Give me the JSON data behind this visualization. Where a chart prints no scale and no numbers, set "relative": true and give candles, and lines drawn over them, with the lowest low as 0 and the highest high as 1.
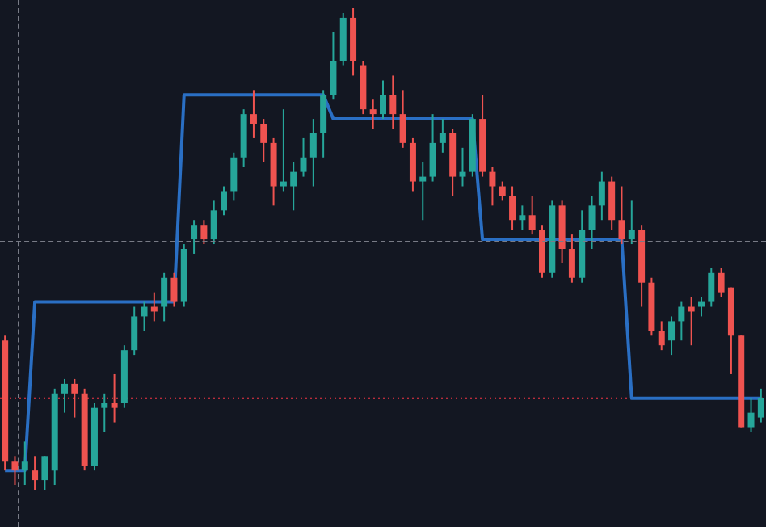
{
  "chart_data": {
    "type": "candlestick",
    "relative": true,
    "categories": [
      null,
      null,
      null,
      null,
      null,
      null,
      null,
      null,
      null,
      null,
      null,
      null,
      null,
      null,
      null,
      null,
      null,
      null,
      null,
      null,
      null,
      null,
      null,
      null,
      null,
      null,
      null,
      null,
      null,
      null,
      null,
      null,
      null,
      null,
      null,
      null,
      null,
      null,
      null,
      null,
      null,
      null,
      null,
      null,
      null,
      null,
      null,
      null,
      null,
      null,
      null,
      null,
      null,
      null,
      null,
      null,
      null,
      null,
      null,
      null,
      null,
      null,
      null,
      null,
      null,
      null,
      null,
      null,
      null,
      null,
      null,
      null,
      null,
      null,
      null,
      null,
      null
    ],
    "ohlc": [
      [
        0.31,
        0.32,
        0.04,
        0.06
      ],
      [
        0.06,
        0.07,
        0.01,
        0.04
      ],
      [
        0.04,
        0.1,
        0.01,
        0.06
      ],
      [
        0.04,
        0.07,
        0,
        0.02
      ],
      [
        0.02,
        0.07,
        0,
        0.07
      ],
      [
        0.04,
        0.21,
        0.01,
        0.2
      ],
      [
        0.2,
        0.23,
        0.16,
        0.22
      ],
      [
        0.22,
        0.23,
        0.15,
        0.2
      ],
      [
        0.2,
        0.21,
        0.04,
        0.05
      ],
      [
        0.05,
        0.18,
        0.04,
        0.17
      ],
      [
        0.17,
        0.2,
        0.12,
        0.18
      ],
      [
        0.18,
        0.24,
        0.14,
        0.17
      ],
      [
        0.18,
        0.3,
        0.17,
        0.29
      ],
      [
        0.29,
        0.38,
        0.28,
        0.36
      ],
      [
        0.36,
        0.39,
        0.33,
        0.38
      ],
      [
        0.38,
        0.41,
        0.35,
        0.37
      ],
      [
        0.38,
        0.45,
        0.35,
        0.44
      ],
      [
        0.44,
        0.45,
        0.38,
        0.39
      ],
      [
        0.39,
        0.51,
        0.38,
        0.5
      ],
      [
        0.52,
        0.56,
        0.49,
        0.55
      ],
      [
        0.55,
        0.56,
        0.51,
        0.52
      ],
      [
        0.52,
        0.6,
        0.51,
        0.58
      ],
      [
        0.58,
        0.63,
        0.57,
        0.62
      ],
      [
        0.62,
        0.7,
        0.6,
        0.69
      ],
      [
        0.69,
        0.79,
        0.67,
        0.78
      ],
      [
        0.78,
        0.83,
        0.73,
        0.76
      ],
      [
        0.76,
        0.77,
        0.68,
        0.72
      ],
      [
        0.72,
        0.73,
        0.59,
        0.63
      ],
      [
        0.63,
        0.79,
        0.62,
        0.64
      ],
      [
        0.63,
        0.68,
        0.58,
        0.66
      ],
      [
        0.66,
        0.73,
        0.65,
        0.69
      ],
      [
        0.69,
        0.77,
        0.63,
        0.74
      ],
      [
        0.74,
        0.83,
        0.69,
        0.82
      ],
      [
        0.82,
        0.95,
        0.81,
        0.89
      ],
      [
        0.89,
        0.99,
        0.88,
        0.98
      ],
      [
        0.98,
        1,
        0.86,
        0.89
      ],
      [
        0.88,
        0.89,
        0.78,
        0.79
      ],
      [
        0.79,
        0.81,
        0.75,
        0.78
      ],
      [
        0.78,
        0.85,
        0.77,
        0.82
      ],
      [
        0.82,
        0.86,
        0.75,
        0.78
      ],
      [
        0.78,
        0.83,
        0.71,
        0.72
      ],
      [
        0.72,
        0.73,
        0.62,
        0.64
      ],
      [
        0.64,
        0.68,
        0.56,
        0.65
      ],
      [
        0.65,
        0.78,
        0.64,
        0.72
      ],
      [
        0.72,
        0.77,
        0.7,
        0.74
      ],
      [
        0.74,
        0.75,
        0.61,
        0.65
      ],
      [
        0.65,
        0.71,
        0.63,
        0.66
      ],
      [
        0.66,
        0.78,
        0.65,
        0.77
      ],
      [
        0.77,
        0.82,
        0.65,
        0.66
      ],
      [
        0.66,
        0.67,
        0.59,
        0.63
      ],
      [
        0.63,
        0.64,
        0.6,
        0.61
      ],
      [
        0.61,
        0.63,
        0.54,
        0.56
      ],
      [
        0.56,
        0.59,
        0.54,
        0.57
      ],
      [
        0.57,
        0.61,
        0.53,
        0.54
      ],
      [
        0.54,
        0.55,
        0.44,
        0.45
      ],
      [
        0.45,
        0.6,
        0.44,
        0.59
      ],
      [
        0.59,
        0.6,
        0.47,
        0.5
      ],
      [
        0.5,
        0.53,
        0.43,
        0.44
      ],
      [
        0.44,
        0.58,
        0.43,
        0.54
      ],
      [
        0.54,
        0.61,
        0.5,
        0.59
      ],
      [
        0.59,
        0.66,
        0.56,
        0.64
      ],
      [
        0.64,
        0.65,
        0.54,
        0.56
      ],
      [
        0.56,
        0.63,
        0.51,
        0.52
      ],
      [
        0.52,
        0.6,
        0.51,
        0.54
      ],
      [
        0.54,
        0.55,
        0.38,
        0.43
      ],
      [
        0.43,
        0.44,
        0.32,
        0.33
      ],
      [
        0.33,
        0.35,
        0.29,
        0.3
      ],
      [
        0.31,
        0.36,
        0.28,
        0.35
      ],
      [
        0.35,
        0.39,
        0.31,
        0.38
      ],
      [
        0.38,
        0.4,
        0.3,
        0.37
      ],
      [
        0.38,
        0.4,
        0.36,
        0.39
      ],
      [
        0.39,
        0.46,
        0.38,
        0.45
      ],
      [
        0.45,
        0.46,
        0.4,
        0.41
      ],
      [
        0.42,
        0.42,
        0.24,
        0.32
      ],
      [
        0.32,
        0.32,
        0.13,
        0.13
      ],
      [
        0.13,
        0.19,
        0.12,
        0.16
      ],
      [
        0.15,
        0.21,
        0.14,
        0.19
      ]
    ],
    "series": [
      {
        "type": "line",
        "color": "#2a6fc4",
        "values": [
          0.04,
          0.04,
          0.04,
          0.39,
          0.39,
          0.39,
          0.39,
          0.39,
          0.39,
          0.39,
          0.39,
          0.39,
          0.39,
          0.39,
          0.39,
          0.39,
          0.39,
          0.39,
          0.82,
          0.82,
          0.82,
          0.82,
          0.82,
          0.82,
          0.82,
          0.82,
          0.82,
          0.82,
          0.82,
          0.82,
          0.82,
          0.82,
          0.82,
          0.77,
          0.77,
          0.77,
          0.77,
          0.77,
          0.77,
          0.77,
          0.77,
          0.77,
          0.77,
          0.77,
          0.77,
          0.77,
          0.77,
          0.77,
          0.52,
          0.52,
          0.52,
          0.52,
          0.52,
          0.52,
          0.52,
          0.52,
          0.52,
          0.52,
          0.52,
          0.52,
          0.52,
          0.52,
          0.52,
          0.19,
          0.19,
          0.19,
          0.19,
          0.19,
          0.19,
          0.19,
          0.19,
          0.19,
          0.19,
          0.19,
          0.19,
          0.19,
          0.19
        ]
      }
    ],
    "ref_lines": [
      {
        "axis": "y",
        "value": 0.19,
        "color": "#f23645",
        "line_style": "dotted"
      }
    ]
  }
}
